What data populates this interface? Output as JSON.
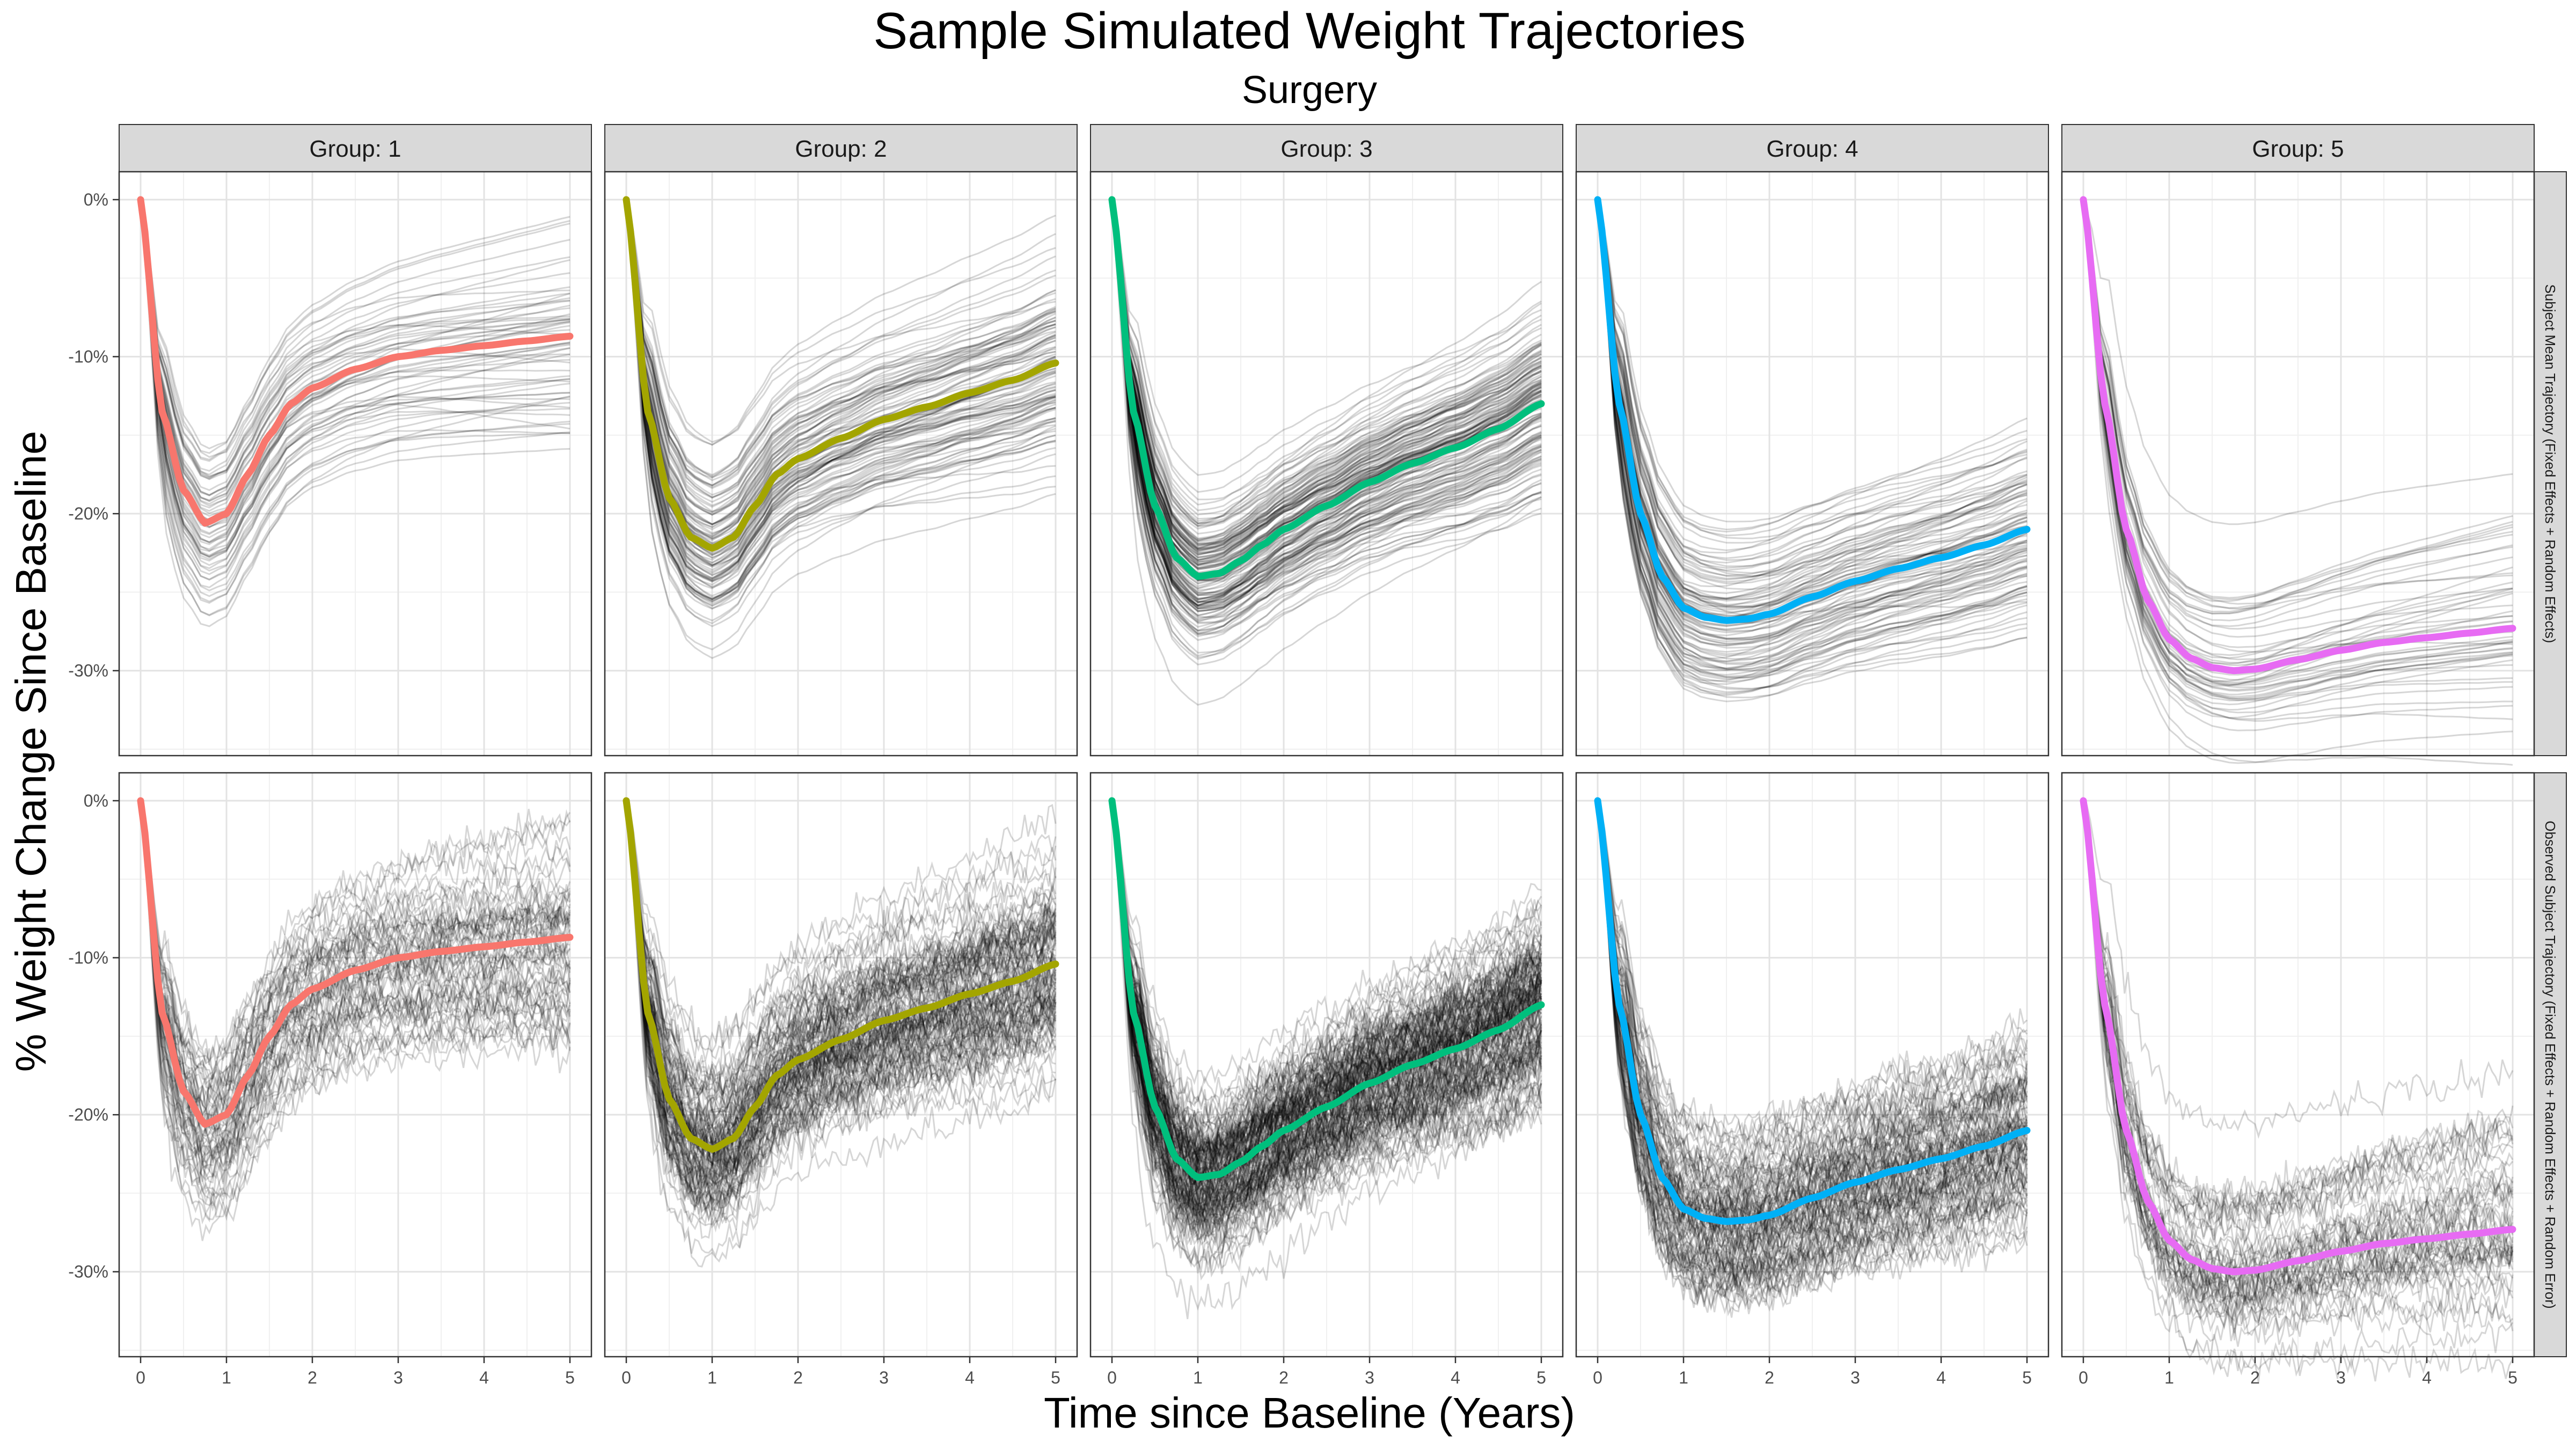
{
  "chart_data": {
    "type": "line",
    "title": "Sample Simulated Weight Trajectories",
    "subtitle": "Surgery",
    "xlabel": "Time since Baseline (Years)",
    "ylabel": "% Weight Change Since Baseline",
    "xlim": [
      0,
      5
    ],
    "ylim": [
      -35,
      0
    ],
    "x_ticks": [
      "0",
      "1",
      "2",
      "3",
      "4",
      "5"
    ],
    "y_ticks": [
      {
        "value": 0,
        "label": "0%"
      },
      {
        "value": -10,
        "label": "-10%"
      },
      {
        "value": -20,
        "label": "-20%"
      },
      {
        "value": -30,
        "label": "-30%"
      }
    ],
    "grid": true,
    "legend": "none",
    "column_facets": [
      "Group: 1",
      "Group: 2",
      "Group: 3",
      "Group: 4",
      "Group: 5"
    ],
    "row_facets": [
      "Subject Mean Trajectory (Fixed Effects + Random Effects)",
      "Observed Subject Trajectory (Fixed Effects + Random Effects + Random Error)"
    ],
    "series": [
      {
        "group": "Group: 1",
        "color": "#F8766D",
        "x": [
          0,
          0.25,
          0.5,
          0.75,
          1.0,
          1.25,
          1.5,
          1.75,
          2.0,
          2.5,
          3.0,
          3.5,
          4.0,
          4.5,
          5.0
        ],
        "y": [
          0,
          -13.5,
          -18.5,
          -20.6,
          -20.0,
          -17.5,
          -15.0,
          -13.0,
          -12.0,
          -10.8,
          -10.0,
          -9.6,
          -9.3,
          -9.0,
          -8.7
        ],
        "spread": 3.0,
        "n_subjects": 60
      },
      {
        "group": "Group: 2",
        "color": "#A3A500",
        "x": [
          0,
          0.25,
          0.5,
          0.75,
          1.0,
          1.25,
          1.5,
          1.75,
          2.0,
          2.5,
          3.0,
          3.5,
          4.0,
          4.5,
          5.0
        ],
        "y": [
          0,
          -13.5,
          -19.0,
          -21.5,
          -22.2,
          -21.5,
          -19.5,
          -17.5,
          -16.5,
          -15.2,
          -14.0,
          -13.2,
          -12.3,
          -11.5,
          -10.4
        ],
        "spread": 2.8,
        "n_subjects": 110
      },
      {
        "group": "Group: 3",
        "color": "#00BF7D",
        "x": [
          0,
          0.25,
          0.5,
          0.75,
          1.0,
          1.25,
          1.5,
          1.75,
          2.0,
          2.5,
          3.0,
          3.5,
          4.0,
          4.5,
          5.0
        ],
        "y": [
          0,
          -13.5,
          -19.5,
          -22.8,
          -24.0,
          -23.8,
          -23.0,
          -22.0,
          -21.0,
          -19.5,
          -18.0,
          -16.8,
          -15.8,
          -14.6,
          -13.0
        ],
        "spread": 2.6,
        "n_subjects": 150
      },
      {
        "group": "Group: 4",
        "color": "#00B0F6",
        "x": [
          0,
          0.25,
          0.5,
          0.75,
          1.0,
          1.25,
          1.5,
          1.75,
          2.0,
          2.5,
          3.0,
          3.5,
          4.0,
          4.5,
          5.0
        ],
        "y": [
          0,
          -13.0,
          -20.0,
          -24.0,
          -26.0,
          -26.6,
          -26.8,
          -26.7,
          -26.4,
          -25.3,
          -24.3,
          -23.5,
          -22.8,
          -22.0,
          -21.0
        ],
        "spread": 2.8,
        "n_subjects": 100
      },
      {
        "group": "Group: 5",
        "color": "#E76BF3",
        "x": [
          0,
          0.25,
          0.5,
          0.75,
          1.0,
          1.25,
          1.5,
          1.75,
          2.0,
          2.5,
          3.0,
          3.5,
          4.0,
          4.5,
          5.0
        ],
        "y": [
          0,
          -13.0,
          -21.0,
          -25.5,
          -28.0,
          -29.2,
          -29.8,
          -30.0,
          -29.9,
          -29.3,
          -28.7,
          -28.2,
          -27.9,
          -27.6,
          -27.3
        ],
        "spread": 2.6,
        "n_subjects": 50
      }
    ]
  }
}
